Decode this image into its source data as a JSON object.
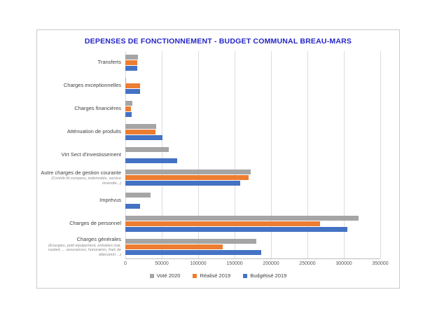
{
  "chart_data": {
    "type": "bar",
    "orientation": "horizontal",
    "title": "DEPENSES DE FONCTIONNEMENT - BUDGET COMMUNAL BREAU-MARS",
    "title_color": "#2424c8",
    "xlim": [
      0,
      350000
    ],
    "x_ticks": [
      "0",
      "50000",
      "100000",
      "150000",
      "200000",
      "250000",
      "300000",
      "350000"
    ],
    "grid": true,
    "legend_position": "bottom",
    "categories": [
      {
        "label": "Transferts",
        "sublabel": ""
      },
      {
        "label": "Charges exceptionnelles",
        "sublabel": ""
      },
      {
        "label": "Charges financières",
        "sublabel": ""
      },
      {
        "label": "Atténuation de produits",
        "sublabel": ""
      },
      {
        "label": "Virt Sect d'investissement",
        "sublabel": ""
      },
      {
        "label": "Autre charges de gestion courante",
        "sublabel": "(Contrib fd compens, indemnités, service incendie...)"
      },
      {
        "label": "Imprévus",
        "sublabel": ""
      },
      {
        "label": "Charges de personnel",
        "sublabel": ""
      },
      {
        "label": "Charges générales",
        "sublabel": "(Energies, petit équipement, entretien mat. roulant, ... assurances, honoraires, frais de télécomm ...)"
      }
    ],
    "series": [
      {
        "name": "Voté 2020",
        "color": "#a5a5a5",
        "values": [
          17500,
          1000,
          9500,
          42000,
          60000,
          172000,
          35000,
          320000,
          180000
        ]
      },
      {
        "name": "Réalisé 2019",
        "color": "#ed7d31",
        "values": [
          16500,
          20000,
          8000,
          41000,
          0,
          169000,
          0,
          267000,
          134000
        ]
      },
      {
        "name": "Budgétisé 2019",
        "color": "#4472c4",
        "values": [
          16500,
          20000,
          8500,
          51000,
          71000,
          158000,
          20000,
          305000,
          187000
        ]
      }
    ]
  }
}
